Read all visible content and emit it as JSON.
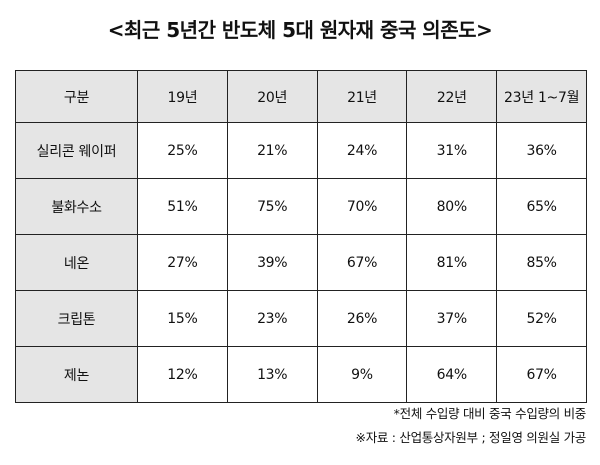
{
  "title": "<최근 5년간 반도체 5대 원자재 중국 의존도>",
  "table": {
    "headers": [
      "구분",
      "19년",
      "20년",
      "21년",
      "22년",
      "23년 1~7월"
    ],
    "rows": [
      {
        "label": "실리콘 웨이퍼",
        "values": [
          "25%",
          "21%",
          "24%",
          "31%",
          "36%"
        ]
      },
      {
        "label": "불화수소",
        "values": [
          "51%",
          "75%",
          "70%",
          "80%",
          "65%"
        ]
      },
      {
        "label": "네온",
        "values": [
          "27%",
          "39%",
          "67%",
          "81%",
          "85%"
        ]
      },
      {
        "label": "크립톤",
        "values": [
          "15%",
          "23%",
          "26%",
          "37%",
          "52%"
        ]
      },
      {
        "label": "제논",
        "values": [
          "12%",
          "13%",
          "9%",
          "64%",
          "67%"
        ]
      }
    ]
  },
  "notes": {
    "line1": "*전체 수입량 대비 중국 수입량의 비중",
    "line2": "※자료 : 산업통상자원부 ; 정일영 의원실 가공"
  }
}
